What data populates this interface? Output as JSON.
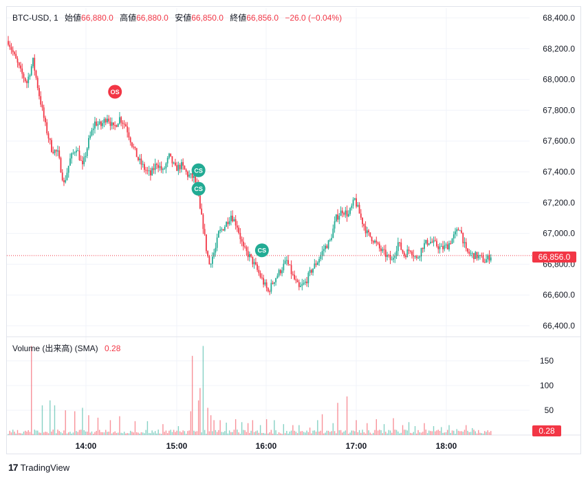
{
  "brand": {
    "logo_glyph": "17",
    "name": "TradingView"
  },
  "legend": {
    "symbol": "BTC-USD, 1",
    "open_label": "始値",
    "open": "66,880.0",
    "high_label": "高値",
    "high": "66,880.0",
    "low_label": "安値",
    "low": "66,850.0",
    "close_label": "終値",
    "close": "66,856.0",
    "change": "−26.0 (−0.04%)"
  },
  "volume_legend": {
    "label": "Volume (出来高) (SMA)",
    "value": "0.28"
  },
  "colors": {
    "up": "#22ab94",
    "down": "#f23645",
    "grid": "#f0f3fa",
    "axis_text": "#131722"
  },
  "chart_data": {
    "type": "candlestick",
    "price_axis": {
      "ticks": [
        "68,400.0",
        "68,200.0",
        "68,000.0",
        "67,800.0",
        "67,600.0",
        "67,400.0",
        "67,200.0",
        "67,000.0",
        "66,800.0",
        "66,600.0",
        "66,400.0"
      ],
      "ylim": [
        66320,
        68450
      ]
    },
    "volume_axis": {
      "ticks": [
        "150",
        "100",
        "50"
      ],
      "ylim": [
        0,
        190
      ]
    },
    "time_axis": {
      "ticks": [
        "14:00",
        "15:00",
        "16:00",
        "17:00",
        "18:00"
      ]
    },
    "last_price": {
      "label": "66,856.0",
      "value": 66856
    },
    "last_volume": {
      "label": "0.28",
      "value": 0.28
    },
    "markers": [
      {
        "label": "OS",
        "time_index": 69,
        "price": 67920,
        "color": "#f23645"
      },
      {
        "label": "CS",
        "time_index": 123,
        "price": 67410,
        "color": "#22ab94"
      },
      {
        "label": "CS",
        "time_index": 123,
        "price": 67290,
        "color": "#22ab94"
      },
      {
        "label": "CS",
        "time_index": 164,
        "price": 66890,
        "color": "#22ab94"
      }
    ],
    "close_path": [
      [
        0,
        68250
      ],
      [
        4,
        68150
      ],
      [
        8,
        68050
      ],
      [
        12,
        67980
      ],
      [
        16,
        68120
      ],
      [
        20,
        67900
      ],
      [
        24,
        67700
      ],
      [
        28,
        67550
      ],
      [
        32,
        67520
      ],
      [
        36,
        67320
      ],
      [
        40,
        67480
      ],
      [
        44,
        67560
      ],
      [
        48,
        67430
      ],
      [
        52,
        67600
      ],
      [
        56,
        67720
      ],
      [
        60,
        67700
      ],
      [
        64,
        67760
      ],
      [
        68,
        67680
      ],
      [
        72,
        67750
      ],
      [
        76,
        67700
      ],
      [
        80,
        67580
      ],
      [
        84,
        67480
      ],
      [
        88,
        67420
      ],
      [
        92,
        67380
      ],
      [
        96,
        67460
      ],
      [
        100,
        67400
      ],
      [
        104,
        67500
      ],
      [
        108,
        67420
      ],
      [
        112,
        67440
      ],
      [
        116,
        67380
      ],
      [
        120,
        67360
      ],
      [
        122,
        67300
      ],
      [
        124,
        67150
      ],
      [
        126,
        67050
      ],
      [
        128,
        66900
      ],
      [
        130,
        66800
      ],
      [
        132,
        66850
      ],
      [
        134,
        66900
      ],
      [
        136,
        67000
      ],
      [
        140,
        67050
      ],
      [
        144,
        67120
      ],
      [
        148,
        67050
      ],
      [
        152,
        66900
      ],
      [
        156,
        66850
      ],
      [
        160,
        66780
      ],
      [
        164,
        66700
      ],
      [
        168,
        66620
      ],
      [
        172,
        66700
      ],
      [
        176,
        66760
      ],
      [
        180,
        66820
      ],
      [
        184,
        66720
      ],
      [
        188,
        66640
      ],
      [
        192,
        66680
      ],
      [
        196,
        66760
      ],
      [
        200,
        66820
      ],
      [
        204,
        66900
      ],
      [
        208,
        66950
      ],
      [
        212,
        67100
      ],
      [
        216,
        67150
      ],
      [
        220,
        67120
      ],
      [
        224,
        67220
      ],
      [
        228,
        67100
      ],
      [
        232,
        67000
      ],
      [
        236,
        66960
      ],
      [
        240,
        66900
      ],
      [
        244,
        66860
      ],
      [
        248,
        66820
      ],
      [
        252,
        66940
      ],
      [
        256,
        66860
      ],
      [
        260,
        66900
      ],
      [
        264,
        66830
      ],
      [
        268,
        66920
      ],
      [
        272,
        66950
      ],
      [
        276,
        66930
      ],
      [
        280,
        66900
      ],
      [
        284,
        66920
      ],
      [
        288,
        66980
      ],
      [
        292,
        67040
      ],
      [
        296,
        66880
      ],
      [
        300,
        66860
      ],
      [
        304,
        66850
      ],
      [
        308,
        66820
      ],
      [
        312,
        66856
      ]
    ],
    "volume_spikes": [
      [
        15,
        180
      ],
      [
        22,
        60
      ],
      [
        27,
        70
      ],
      [
        30,
        60
      ],
      [
        37,
        50
      ],
      [
        43,
        48
      ],
      [
        48,
        55
      ],
      [
        52,
        40
      ],
      [
        58,
        35
      ],
      [
        66,
        30
      ],
      [
        72,
        38
      ],
      [
        82,
        28
      ],
      [
        90,
        28
      ],
      [
        100,
        22
      ],
      [
        110,
        18
      ],
      [
        118,
        48
      ],
      [
        119,
        160
      ],
      [
        123,
        70
      ],
      [
        124,
        95
      ],
      [
        126,
        180
      ],
      [
        129,
        55
      ],
      [
        131,
        40
      ],
      [
        133,
        30
      ],
      [
        137,
        30
      ],
      [
        141,
        25
      ],
      [
        147,
        32
      ],
      [
        151,
        26
      ],
      [
        155,
        24
      ],
      [
        158,
        30
      ],
      [
        163,
        20
      ],
      [
        167,
        32
      ],
      [
        172,
        30
      ],
      [
        178,
        22
      ],
      [
        184,
        20
      ],
      [
        188,
        20
      ],
      [
        195,
        15
      ],
      [
        200,
        30
      ],
      [
        203,
        42
      ],
      [
        210,
        24
      ],
      [
        213,
        65
      ],
      [
        219,
        78
      ],
      [
        225,
        30
      ],
      [
        232,
        24
      ],
      [
        238,
        32
      ],
      [
        243,
        22
      ],
      [
        249,
        34
      ],
      [
        255,
        20
      ],
      [
        259,
        26
      ],
      [
        263,
        18
      ],
      [
        269,
        24
      ],
      [
        275,
        18
      ],
      [
        280,
        16
      ],
      [
        285,
        20
      ],
      [
        290,
        12
      ],
      [
        296,
        20
      ],
      [
        300,
        14
      ],
      [
        304,
        10
      ],
      [
        308,
        8
      ]
    ]
  }
}
